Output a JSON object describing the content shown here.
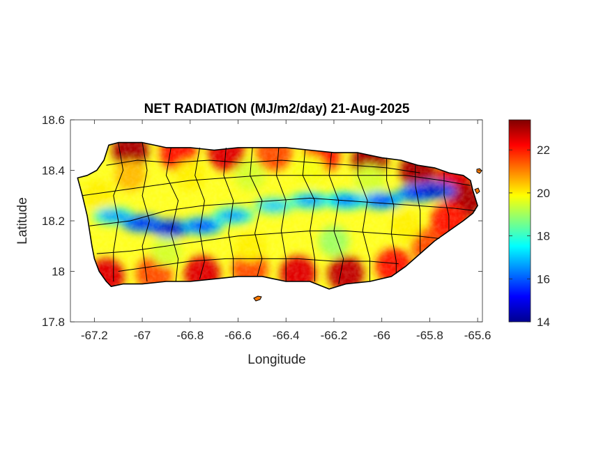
{
  "chart_data": {
    "type": "heatmap",
    "title": "NET RADIATION (MJ/m2/day) 21-Aug-2025",
    "xlabel": "Longitude",
    "ylabel": "Latitude",
    "xlim": [
      -67.3,
      -65.58
    ],
    "ylim": [
      17.8,
      18.6
    ],
    "x_ticks": [
      "-67.2",
      "-67",
      "-66.8",
      "-66.6",
      "-66.4",
      "-66.2",
      "-66",
      "-65.8",
      "-65.6"
    ],
    "x_tick_values": [
      -67.2,
      -67.0,
      -66.8,
      -66.6,
      -66.4,
      -66.2,
      -66.0,
      -65.8,
      -65.6
    ],
    "y_ticks": [
      "18.6",
      "18.4",
      "18.2",
      "18",
      "17.8"
    ],
    "y_tick_values": [
      18.6,
      18.4,
      18.2,
      18.0,
      17.8
    ],
    "colorbar": {
      "colormap": "jet",
      "clim": [
        14,
        23.4
      ],
      "ticks": [
        "22",
        "20",
        "18",
        "16",
        "14"
      ],
      "tick_values": [
        22,
        20,
        18,
        16,
        14
      ]
    },
    "grid": false,
    "low_radiation_band": [
      {
        "lon": -67.12,
        "lat": 18.22,
        "value": 16.5
      },
      {
        "lon": -67.0,
        "lat": 18.19,
        "value": 15.0
      },
      {
        "lon": -66.88,
        "lat": 18.17,
        "value": 14.5
      },
      {
        "lon": -66.75,
        "lat": 18.18,
        "value": 15.5
      },
      {
        "lon": -66.62,
        "lat": 18.22,
        "value": 16.5
      },
      {
        "lon": -66.45,
        "lat": 18.26,
        "value": 17.0
      },
      {
        "lon": -66.3,
        "lat": 18.28,
        "value": 16.5
      },
      {
        "lon": -66.15,
        "lat": 18.28,
        "value": 16.0
      },
      {
        "lon": -66.0,
        "lat": 18.28,
        "value": 15.5
      },
      {
        "lon": -65.85,
        "lat": 18.31,
        "value": 15.0
      },
      {
        "lon": -65.78,
        "lat": 18.32,
        "value": 14.5
      }
    ],
    "colors": {
      "land_mask": "#000000",
      "boundaries": "#000000"
    }
  }
}
